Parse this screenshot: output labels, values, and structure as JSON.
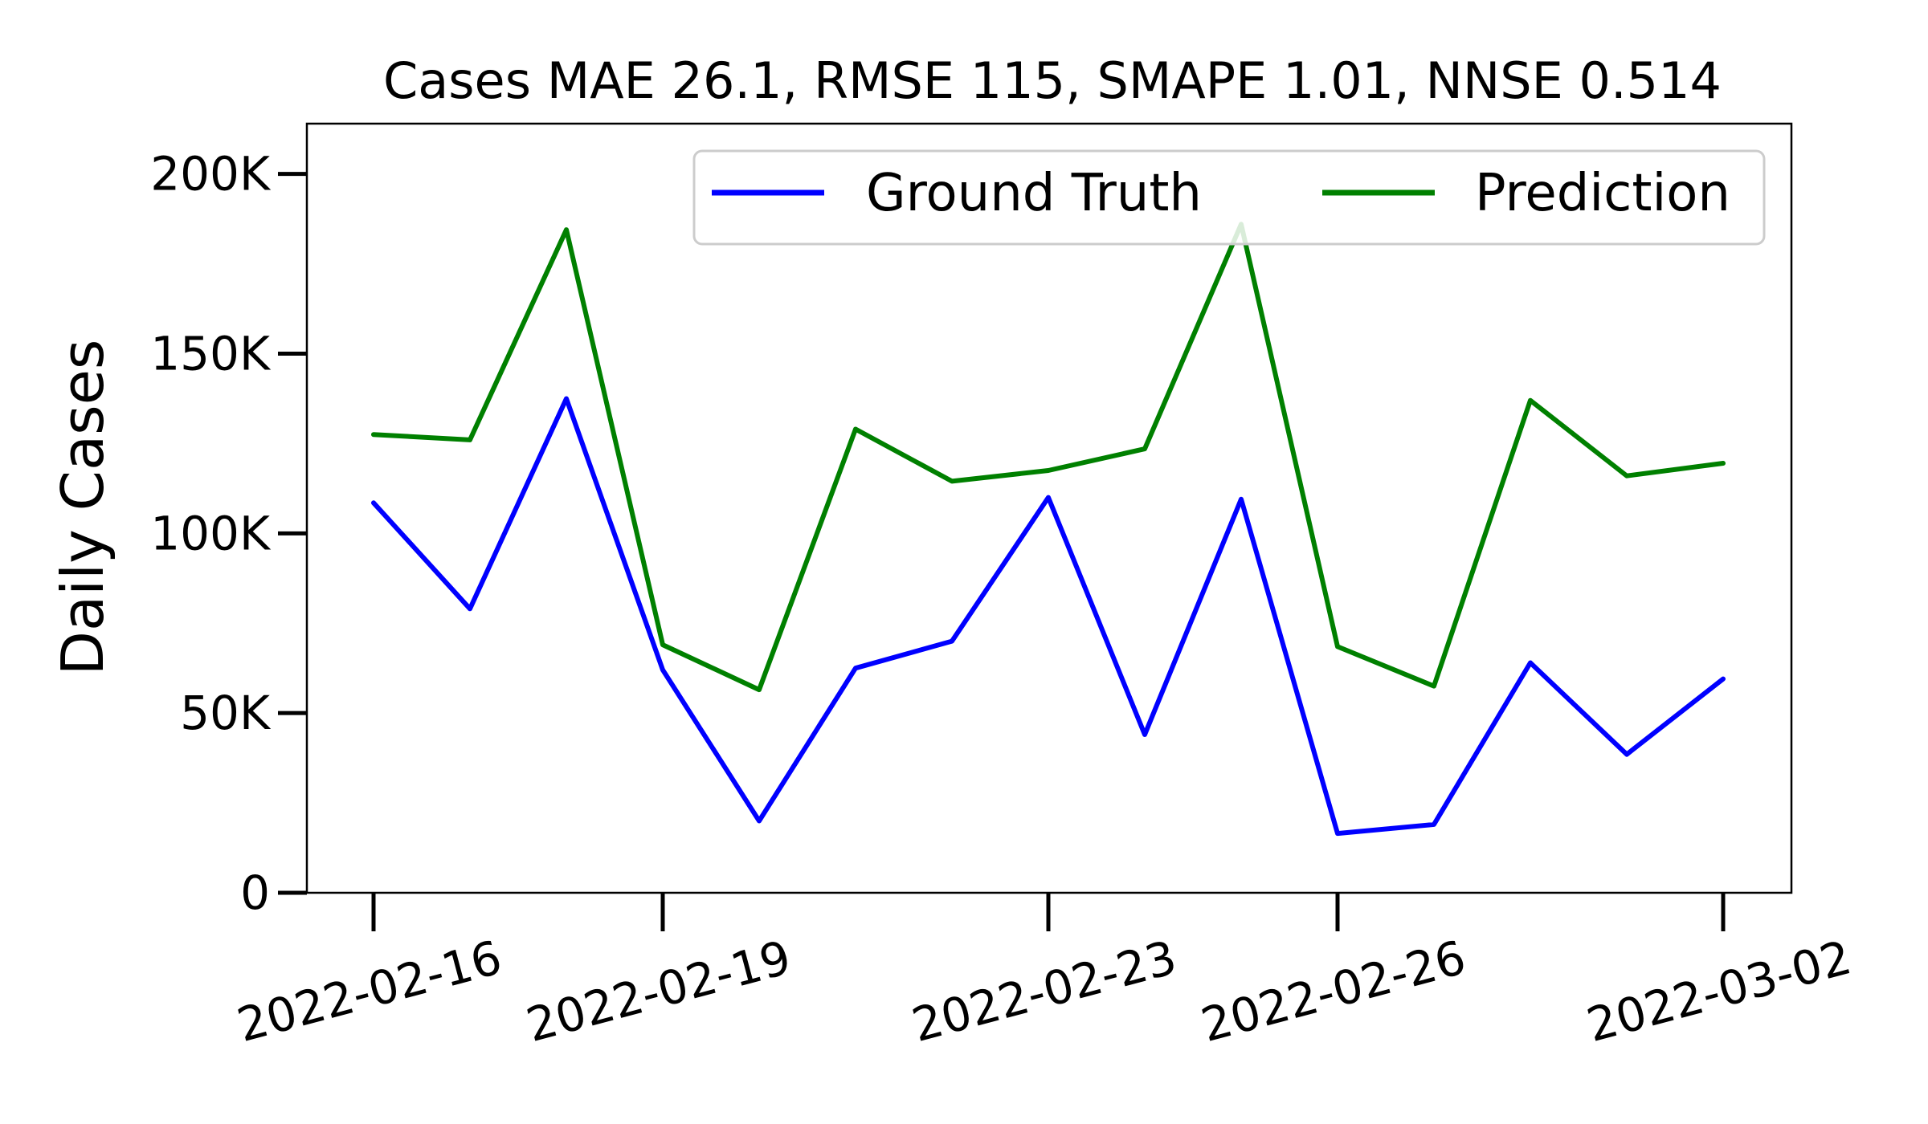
{
  "chart_data": {
    "type": "line",
    "title": "Cases MAE 26.1, RMSE 115, SMAPE 1.01, NNSE 0.514",
    "xlabel": "",
    "ylabel": "Daily Cases",
    "x": [
      "2022-02-16",
      "2022-02-17",
      "2022-02-18",
      "2022-02-19",
      "2022-02-20",
      "2022-02-21",
      "2022-02-22",
      "2022-02-23",
      "2022-02-24",
      "2022-02-25",
      "2022-02-26",
      "2022-02-27",
      "2022-02-28",
      "2022-03-01",
      "2022-03-02"
    ],
    "x_ticks": [
      "2022-02-16",
      "2022-02-19",
      "2022-02-23",
      "2022-02-26",
      "2022-03-02"
    ],
    "y_ticks": [
      {
        "value": 0,
        "label": "0"
      },
      {
        "value": 50000,
        "label": "50K"
      },
      {
        "value": 100000,
        "label": "100K"
      },
      {
        "value": 150000,
        "label": "150K"
      },
      {
        "value": 200000,
        "label": "200K"
      }
    ],
    "ylim": [
      0,
      214000
    ],
    "grid": false,
    "legend_position": "top-right",
    "series": [
      {
        "name": "Ground Truth",
        "color": "#0000ff",
        "values": [
          108500,
          79000,
          137500,
          62000,
          20000,
          62500,
          70000,
          110000,
          44000,
          109500,
          16500,
          19000,
          64000,
          38500,
          59500
        ]
      },
      {
        "name": "Prediction",
        "color": "#008000",
        "values": [
          127500,
          126000,
          184500,
          69000,
          56500,
          129000,
          114500,
          117500,
          123500,
          186000,
          68500,
          57500,
          137000,
          116000,
          119500
        ]
      }
    ]
  }
}
